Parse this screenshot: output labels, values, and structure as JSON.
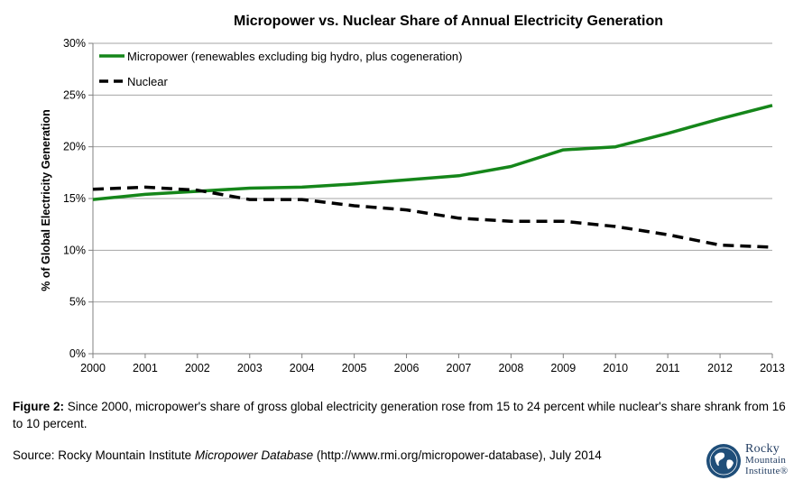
{
  "chart_data": {
    "type": "line",
    "title": "Micropower vs. Nuclear Share of Annual Electricity Generation",
    "xlabel": "",
    "ylabel": "% of Global Electricity Generation",
    "x": [
      2000,
      2001,
      2002,
      2003,
      2004,
      2005,
      2006,
      2007,
      2008,
      2009,
      2010,
      2011,
      2012,
      2013
    ],
    "xlim": [
      2000,
      2013
    ],
    "ylim": [
      0,
      30
    ],
    "y_ticks": [
      "0%",
      "5%",
      "10%",
      "15%",
      "20%",
      "25%",
      "30%"
    ],
    "x_ticks": [
      "2000",
      "2001",
      "2002",
      "2003",
      "2004",
      "2005",
      "2006",
      "2007",
      "2008",
      "2009",
      "2010",
      "2011",
      "2012",
      "2013"
    ],
    "grid": "horizontal",
    "legend_position": "top-left",
    "series": [
      {
        "name": "Micropower (renewables excluding big hydro, plus cogeneration)",
        "color": "#15861a",
        "style": "solid",
        "values": [
          14.9,
          15.4,
          15.7,
          16.0,
          16.1,
          16.4,
          16.8,
          17.2,
          18.1,
          19.7,
          20.0,
          21.3,
          22.7,
          24.0
        ]
      },
      {
        "name": "Nuclear",
        "color": "#000000",
        "style": "dashed",
        "values": [
          15.9,
          16.1,
          15.8,
          14.9,
          14.9,
          14.3,
          13.9,
          13.1,
          12.8,
          12.8,
          12.3,
          11.5,
          10.5,
          10.3
        ]
      }
    ]
  },
  "caption": {
    "label": "Figure 2:",
    "text": " Since 2000, micropower's share of gross global electricity generation rose from 15 to 24 percent while nuclear's share shrank from 16 to 10 percent."
  },
  "source": {
    "prefix": "Source: Rocky Mountain Institute ",
    "italic": "Micropower Database",
    "suffix": " (http://www.rmi.org/micropower-database), July 2014"
  },
  "logo": {
    "line1": "Rocky",
    "line2": "Mountain",
    "line3": "Institute®"
  }
}
